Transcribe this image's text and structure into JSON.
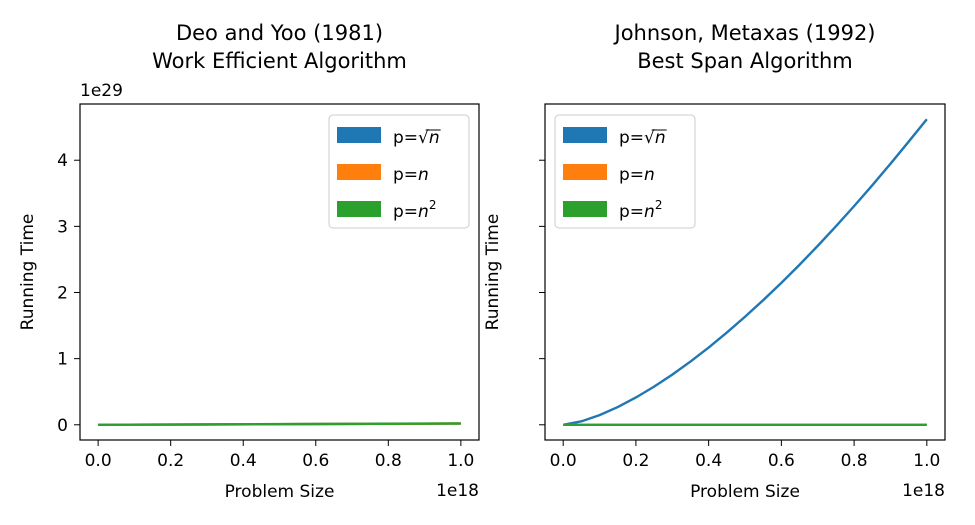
{
  "chart_data": [
    {
      "type": "line",
      "title_line1": "Deo and Yoo (1981)",
      "title_line2": "Work Efficient Algorithm",
      "xlabel": "Problem Size",
      "ylabel": "Running Time",
      "x_offset_label": "1e18",
      "y_offset_label": "1e29",
      "x_ticks": [
        "0.0",
        "0.2",
        "0.4",
        "0.6",
        "0.8",
        "1.0"
      ],
      "y_ticks": [
        "0",
        "1",
        "2",
        "3",
        "4"
      ],
      "xlim": [
        -0.05,
        1.05
      ],
      "ylim": [
        -0.23,
        4.85
      ],
      "grid": false,
      "legend_position": "top-right",
      "series": [
        {
          "name": "p=√n",
          "color": "#1f77b4",
          "x": [
            0,
            0.25,
            0.5,
            0.75,
            1.0
          ],
          "y": [
            0,
            0.004,
            0.009,
            0.014,
            0.018
          ]
        },
        {
          "name": "p=n",
          "color": "#ff7f0e",
          "x": [
            0,
            0.25,
            0.5,
            0.75,
            1.0
          ],
          "y": [
            0,
            0.004,
            0.009,
            0.014,
            0.018
          ]
        },
        {
          "name": "p=n²",
          "color": "#2ca02c",
          "x": [
            0,
            0.25,
            0.5,
            0.75,
            1.0
          ],
          "y": [
            0,
            0.005,
            0.01,
            0.015,
            0.02
          ]
        }
      ]
    },
    {
      "type": "line",
      "title_line1": "Johnson, Metaxas (1992)",
      "title_line2": "Best Span Algorithm",
      "xlabel": "Problem Size",
      "ylabel": "Running Time",
      "x_offset_label": "1e18",
      "x_ticks": [
        "0.0",
        "0.2",
        "0.4",
        "0.6",
        "0.8",
        "1.0"
      ],
      "y_ticks": [
        "",
        "",
        "",
        "",
        ""
      ],
      "xlim": [
        -0.05,
        1.05
      ],
      "ylim": [
        -0.23,
        4.85
      ],
      "grid": false,
      "legend_position": "top-left",
      "series": [
        {
          "name": "p=√n",
          "color": "#1f77b4",
          "x": [
            0,
            0.05,
            0.1,
            0.15,
            0.2,
            0.25,
            0.3,
            0.35,
            0.4,
            0.45,
            0.5,
            0.55,
            0.6,
            0.65,
            0.7,
            0.75,
            0.8,
            0.85,
            0.9,
            0.95,
            1.0
          ],
          "y": [
            0,
            0.052,
            0.146,
            0.268,
            0.413,
            0.577,
            0.758,
            0.956,
            1.168,
            1.394,
            1.633,
            1.884,
            2.146,
            2.42,
            2.705,
            3.0,
            3.306,
            3.621,
            3.946,
            4.28,
            4.62
          ]
        },
        {
          "name": "p=n",
          "color": "#ff7f0e",
          "x": [
            0,
            0.5,
            1.0
          ],
          "y": [
            0,
            0,
            0
          ]
        },
        {
          "name": "p=n²",
          "color": "#2ca02c",
          "x": [
            0,
            0.5,
            1.0
          ],
          "y": [
            0,
            0,
            0
          ]
        }
      ]
    }
  ]
}
